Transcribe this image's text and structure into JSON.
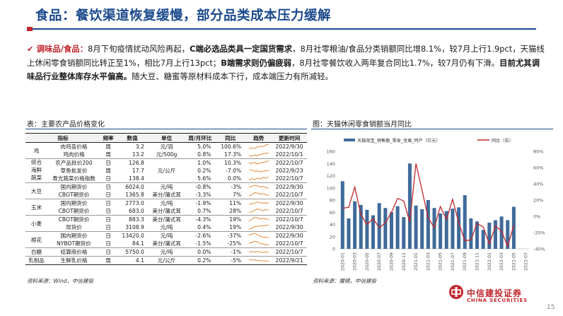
{
  "title": "食品：餐饮渠道恢复缓慢，部分品类成本压力缓解",
  "bullet": {
    "lead": "调味品/食品：",
    "p1": "8月下旬疫情扰动风险再起，",
    "p2": "C端必选品类具一定国货需求",
    "p3": "，8月社零粮油/食品分类销额同比增8.1%，较7月上行1.9pct，天猫线上休闲零食销额同比转正至1%，相比7月上行13pct；",
    "p4": "B端需求则仍偏疲弱",
    "p5": "，8月社零餐饮收入两年复合同比1.7%，较7月仍有下滑。",
    "p6": "目前尤其调味品行业整体库存水平偏高。",
    "p7": "随大豆、糖蜜等原材料成本下行，成本端压力有所减轻。"
  },
  "table": {
    "caption": "表：主要农产品价格变化",
    "headers": [
      "指标",
      "频率",
      "数值",
      "单位",
      "周/月环比",
      "同比",
      "趋势",
      "更新时间"
    ],
    "rows": [
      {
        "cat": "",
        "name": "肉鸡苗价格",
        "freq": "周",
        "value": "3.2",
        "unit": "元/羽",
        "mom": "5.0%",
        "yoy": "100.6%",
        "date": "2022/9/30",
        "trend": [
          0.1,
          0.3,
          0.2,
          0.4,
          0.6,
          0.5,
          0.8,
          0.9
        ]
      },
      {
        "cat": "鸡",
        "name": "鸡肉价格",
        "freq": "周",
        "value": "13.2",
        "unit": "元/500g",
        "mom": "0.8%",
        "yoy": "17.3%",
        "date": "2022/10/1",
        "trend": [
          0.3,
          0.2,
          0.4,
          0.3,
          0.5,
          0.6,
          0.7,
          0.8
        ]
      },
      {
        "cat": "综合",
        "name": "农产品批价200",
        "freq": "日",
        "value": "126.8",
        "unit": "",
        "mom": "1.0%",
        "yoy": "10.3%",
        "date": "2022/10/7",
        "trend": [
          0.5,
          0.4,
          0.6,
          0.3,
          0.5,
          0.6,
          0.7,
          0.9
        ]
      },
      {
        "cat": "海鲜",
        "name": "草鱼批发价",
        "freq": "周",
        "value": "17.7",
        "unit": "元/公斤",
        "mom": "0.2%",
        "yoy": "-7.0%",
        "date": "2022/9/23",
        "trend": [
          0.7,
          0.6,
          0.4,
          0.5,
          0.3,
          0.4,
          0.5,
          0.5
        ]
      },
      {
        "cat": "蔬菜",
        "name": "寿光蔬菜价格指数",
        "freq": "日",
        "value": "138.4",
        "unit": "",
        "mom": "5.6%",
        "yoy": "0.0%",
        "date": "2022/10/7",
        "trend": [
          0.2,
          0.5,
          0.3,
          0.6,
          0.4,
          0.7,
          0.5,
          0.8
        ]
      },
      {
        "cat": "",
        "name": "国内期货价",
        "freq": "日",
        "value": "6024.0",
        "unit": "元/吨",
        "mom": "-0.8%",
        "yoy": "-3%",
        "date": "2022/9/30",
        "trend": [
          0.4,
          0.6,
          0.8,
          0.7,
          0.5,
          0.6,
          0.4,
          0.3
        ]
      },
      {
        "cat": "大豆",
        "name": "CBOT期货价",
        "freq": "日",
        "value": "1365.8",
        "unit": "美分/蒲式耳",
        "mom": "-3.3%",
        "yoy": "7%",
        "date": "2022/10/7",
        "trend": [
          0.3,
          0.5,
          0.9,
          0.8,
          0.6,
          0.7,
          0.5,
          0.4
        ]
      },
      {
        "cat": "",
        "name": "国内期货价",
        "freq": "日",
        "value": "2773.0",
        "unit": "元/吨",
        "mom": "-1.9%",
        "yoy": "11%",
        "date": "2022/9/30",
        "trend": [
          0.3,
          0.4,
          0.5,
          0.7,
          0.6,
          0.5,
          0.6,
          0.5
        ]
      },
      {
        "cat": "玉米",
        "name": "CBOT期货价",
        "freq": "日",
        "value": "683.0",
        "unit": "美分/蒲式耳",
        "mom": "0.7%",
        "yoy": "28%",
        "date": "2022/10/7",
        "trend": [
          0.2,
          0.4,
          0.6,
          0.9,
          0.7,
          0.6,
          0.7,
          0.7
        ]
      },
      {
        "cat": "",
        "name": "CBOT期货价",
        "freq": "日",
        "value": "883.3",
        "unit": "美分/蒲式耳",
        "mom": "-4.3%",
        "yoy": "19%",
        "date": "2022/10/7",
        "trend": [
          0.2,
          0.5,
          0.9,
          0.8,
          0.6,
          0.7,
          0.6,
          0.5
        ]
      },
      {
        "cat": "小麦",
        "name": "现货价",
        "freq": "日",
        "value": "3108.9",
        "unit": "元/吨",
        "mom": "0.4%",
        "yoy": "19%",
        "date": "2022/9/30",
        "trend": [
          0.2,
          0.3,
          0.6,
          0.7,
          0.7,
          0.8,
          0.8,
          0.9
        ]
      },
      {
        "cat": "",
        "name": "国内期货价",
        "freq": "日",
        "value": "13420.0",
        "unit": "元/吨",
        "mom": "-2.6%",
        "yoy": "-37%",
        "date": "2022/9/30",
        "trend": [
          0.6,
          0.8,
          0.9,
          0.7,
          0.4,
          0.3,
          0.2,
          0.2
        ]
      },
      {
        "cat": "棉花",
        "name": "NYBOT期货价",
        "freq": "日",
        "value": "84.1",
        "unit": "美分/蒲式耳",
        "mom": "-1.5%",
        "yoy": "-25%",
        "date": "2022/10/7",
        "trend": [
          0.5,
          0.7,
          0.9,
          0.8,
          0.5,
          0.4,
          0.3,
          0.3
        ]
      },
      {
        "cat": "白糖",
        "name": "结算商价格",
        "freq": "日",
        "value": "5750.0",
        "unit": "元/吨",
        "mom": "0.0%",
        "yoy": "-1%",
        "date": "2022/10/7",
        "trend": [
          0.5,
          0.6,
          0.5,
          0.6,
          0.5,
          0.4,
          0.5,
          0.5
        ]
      },
      {
        "cat": "乳制品",
        "name": "生鲜乳价格",
        "freq": "周",
        "value": "4.1",
        "unit": "元/公斤",
        "mom": "0.2%",
        "yoy": "-5%",
        "date": "2022/9/21",
        "trend": [
          0.7,
          0.6,
          0.6,
          0.5,
          0.5,
          0.4,
          0.4,
          0.4
        ]
      }
    ],
    "source": "资料来源：Wind，中信建投"
  },
  "chart_caption": "图：天猫休闲零食销额当月同比",
  "chart_source": "资料来源：魔镜，中信建投",
  "colors": {
    "bar": "#3f6b9a",
    "line": "#c0272d",
    "title": "#1b4a8c"
  },
  "chart_data": {
    "type": "bar",
    "title": "",
    "series": [
      {
        "name": "天猫淘宝_销售额_零食_坚果_特产（亿元）",
        "type": "bar",
        "axis": "left",
        "values": [
          111,
          50,
          78,
          72,
          64,
          55,
          75,
          67,
          60,
          70,
          52,
          140,
          71,
          65,
          80,
          67,
          58,
          62,
          66,
          68,
          88,
          50,
          45,
          31,
          43,
          47,
          53,
          47,
          69
        ]
      },
      {
        "name": "同比（右）",
        "type": "line",
        "axis": "right",
        "values": [
          10,
          11,
          36,
          2,
          -10,
          -3,
          -14,
          -8,
          5,
          22,
          19,
          -7,
          65,
          32,
          -2,
          -14,
          12,
          -4,
          21,
          -8,
          -30,
          -29,
          -9,
          -13,
          -34,
          -12,
          -18,
          -37,
          -11
        ]
      }
    ],
    "x": [
      "2020-01",
      "2020-02",
      "2020-03",
      "2020-04",
      "2020-05",
      "2020-06",
      "2020-07",
      "2020-08",
      "2020-09",
      "2020-10",
      "2020-11",
      "2020-12",
      "2021-01",
      "2021-02",
      "2021-03",
      "2021-04",
      "2021-05",
      "2021-06",
      "2021-07",
      "2021-08",
      "2021-09",
      "2021-10",
      "2021-11",
      "2021-12",
      "2022-01",
      "2022-02",
      "2022-03",
      "2022-04",
      "2022-05"
    ],
    "x_ticks": [
      "2020-01",
      "2020-03",
      "2020-05",
      "2020-07",
      "2020-09",
      "2020-11",
      "2021-01",
      "2021-03",
      "2021-05",
      "2021-07",
      "2021-09",
      "2021-11",
      "2022-01",
      "2022-03",
      "2022-05",
      "2022-07"
    ],
    "y_left": {
      "ticks": [
        0,
        20,
        40,
        60,
        80,
        100,
        120,
        140,
        160
      ],
      "ylim": [
        0,
        160
      ]
    },
    "y_right": {
      "ticks": [
        "-40%",
        "-20%",
        "0%",
        "20%",
        "40%",
        "60%",
        "80%"
      ],
      "ylim": [
        -40,
        80
      ]
    },
    "legend": "top"
  },
  "logo": {
    "cn": "中信建投证券",
    "en": "CHINA SECURITIES"
  },
  "page_number": "15"
}
